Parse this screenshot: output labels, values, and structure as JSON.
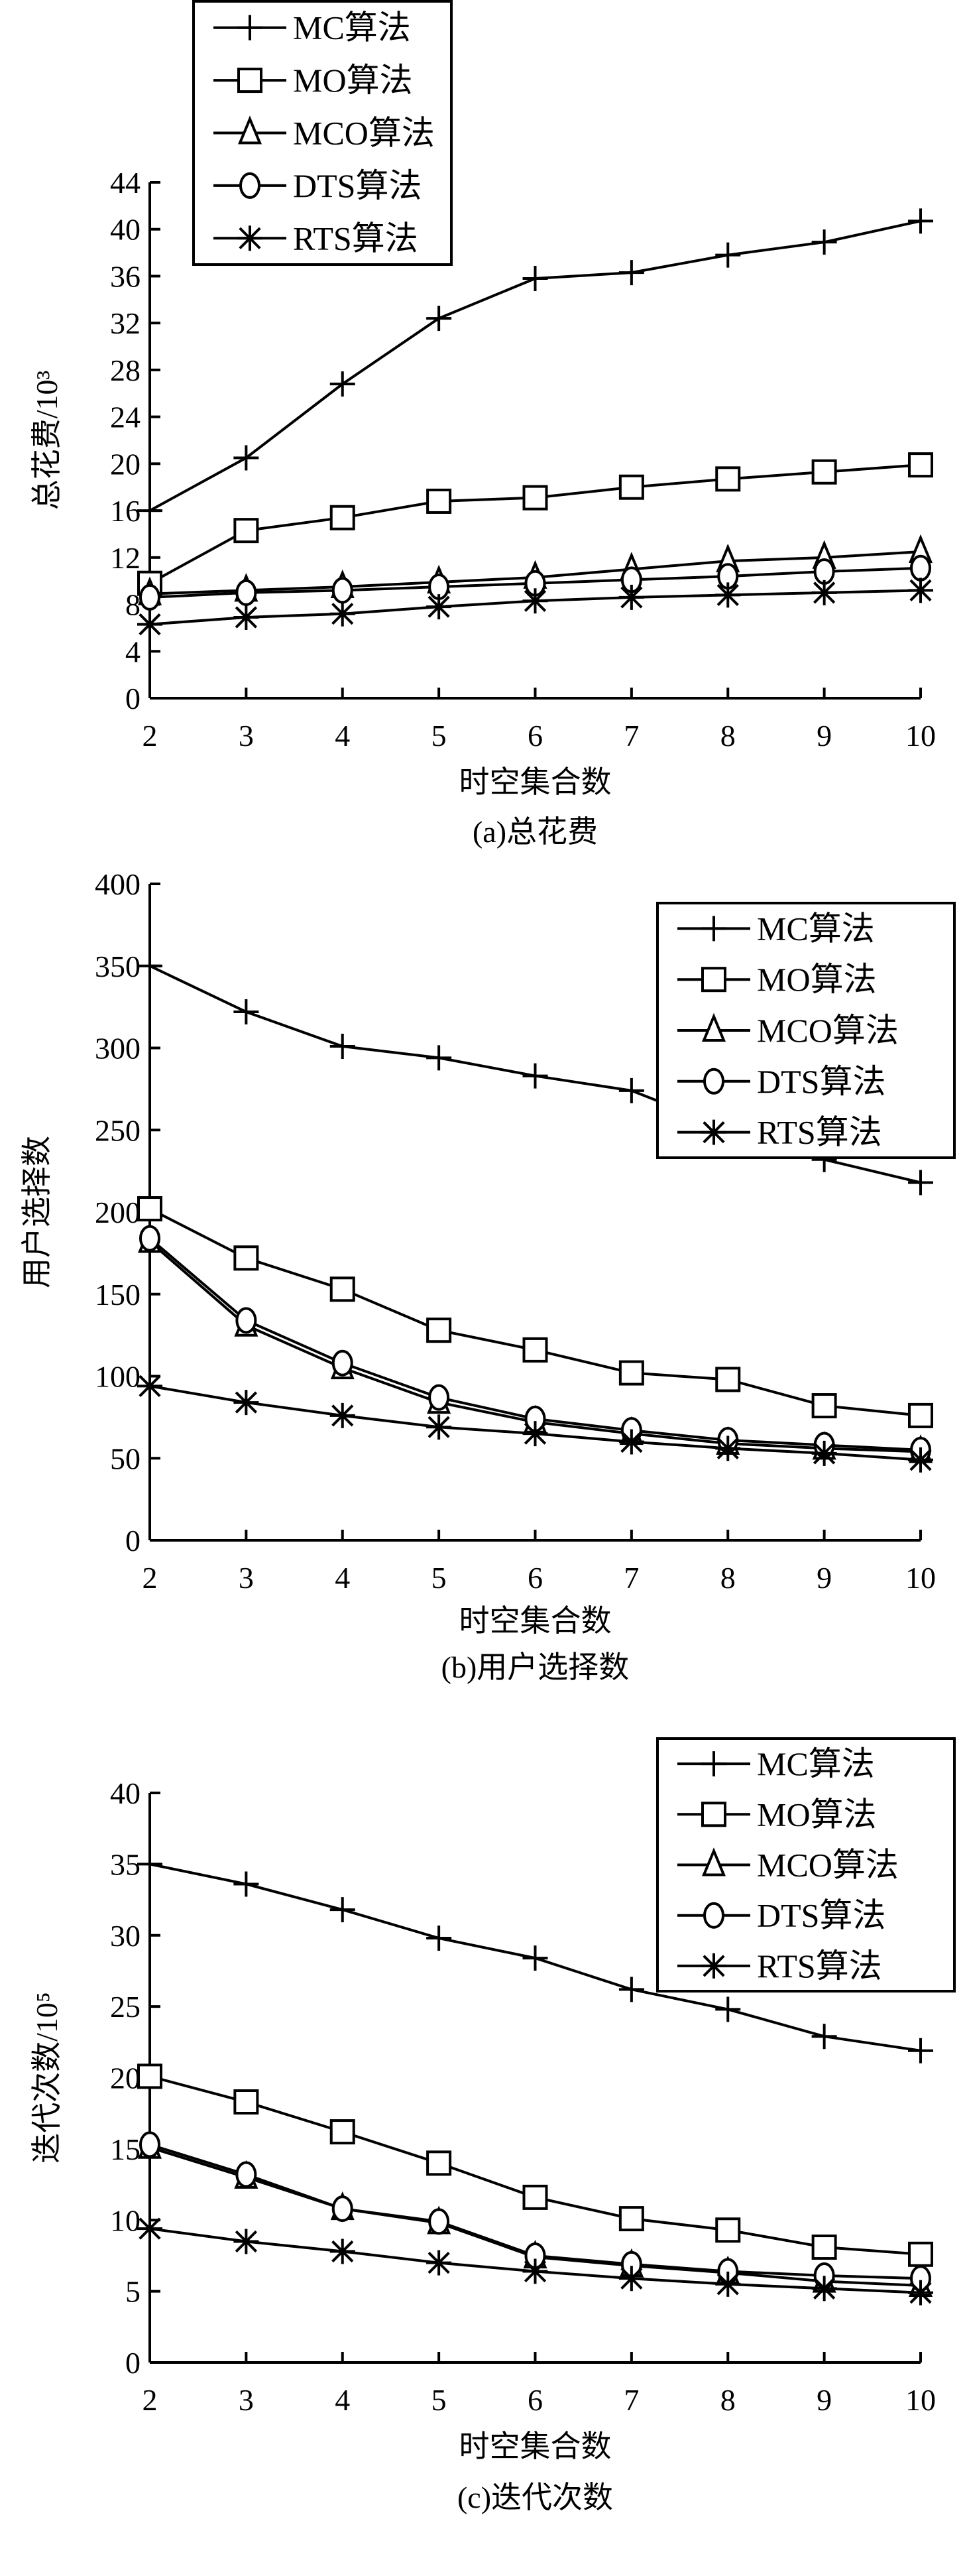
{
  "chart_data": [
    {
      "type": "line",
      "caption": "(a)总花费",
      "xlabel": "时空集合数",
      "ylabel": "总花费/10³",
      "x": [
        2,
        3,
        4,
        5,
        6,
        7,
        8,
        9,
        10
      ],
      "xlim": [
        2,
        10
      ],
      "ylim": [
        0,
        44
      ],
      "yticks": [
        0,
        4,
        8,
        12,
        16,
        20,
        24,
        28,
        32,
        36,
        40,
        44
      ],
      "legend_position": "top-left",
      "grid": false,
      "series": [
        {
          "name": "MC算法",
          "marker": "plus",
          "values": [
            16,
            20.5,
            26.8,
            32.4,
            35.8,
            36.3,
            37.8,
            38.9,
            40.7
          ]
        },
        {
          "name": "MO算法",
          "marker": "square",
          "values": [
            9.8,
            14.3,
            15.4,
            16.8,
            17.1,
            18,
            18.7,
            19.3,
            19.9
          ]
        },
        {
          "name": "MCO算法",
          "marker": "triangle",
          "values": [
            8.9,
            9.2,
            9.5,
            9.9,
            10.3,
            11,
            11.7,
            12,
            12.5
          ]
        },
        {
          "name": "DTS算法",
          "marker": "circle",
          "values": [
            8.6,
            9.0,
            9.2,
            9.5,
            9.8,
            10.1,
            10.4,
            10.8,
            11.1
          ]
        },
        {
          "name": "RTS算法",
          "marker": "asterisk",
          "values": [
            6.3,
            6.9,
            7.2,
            7.8,
            8.3,
            8.6,
            8.8,
            9.0,
            9.2
          ]
        }
      ]
    },
    {
      "type": "line",
      "caption": "(b)用户选择数",
      "xlabel": "时空集合数",
      "ylabel": "用户选择数",
      "x": [
        2,
        3,
        4,
        5,
        6,
        7,
        8,
        9,
        10
      ],
      "xlim": [
        2,
        10
      ],
      "ylim": [
        0,
        400
      ],
      "yticks": [
        0,
        50,
        100,
        150,
        200,
        250,
        300,
        350,
        400
      ],
      "legend_position": "top-right",
      "grid": false,
      "series": [
        {
          "name": "MC算法",
          "marker": "plus",
          "values": [
            350,
            322,
            301,
            294,
            283,
            274,
            251,
            232,
            218
          ]
        },
        {
          "name": "MO算法",
          "marker": "square",
          "values": [
            202,
            172,
            153,
            128,
            116,
            102,
            98,
            82,
            76
          ]
        },
        {
          "name": "MCO算法",
          "marker": "triangle",
          "values": [
            182,
            131,
            105,
            84,
            72,
            65,
            59,
            56,
            54
          ]
        },
        {
          "name": "DTS算法",
          "marker": "circle",
          "values": [
            184,
            134,
            108,
            87,
            74,
            67,
            61,
            58,
            55
          ]
        },
        {
          "name": "RTS算法",
          "marker": "asterisk",
          "values": [
            94,
            84,
            76,
            69,
            65,
            60,
            56,
            53,
            49
          ]
        }
      ]
    },
    {
      "type": "line",
      "caption": "(c)迭代次数",
      "xlabel": "时空集合数",
      "ylabel": "迭代次数/10⁵",
      "x": [
        2,
        3,
        4,
        5,
        6,
        7,
        8,
        9,
        10
      ],
      "xlim": [
        2,
        10
      ],
      "ylim": [
        0,
        40
      ],
      "yticks": [
        0,
        5,
        10,
        15,
        20,
        25,
        30,
        35,
        40
      ],
      "legend_position": "top-right",
      "grid": false,
      "series": [
        {
          "name": "MC算法",
          "marker": "plus",
          "values": [
            35,
            33.6,
            31.8,
            29.8,
            28.4,
            26.2,
            24.8,
            22.9,
            21.9
          ]
        },
        {
          "name": "MO算法",
          "marker": "square",
          "values": [
            20.1,
            18.3,
            16.2,
            14,
            11.6,
            10.1,
            9.3,
            8.1,
            7.6
          ]
        },
        {
          "name": "MCO算法",
          "marker": "triangle",
          "values": [
            15.1,
            13.0,
            10.8,
            9.8,
            7.4,
            6.8,
            6.3,
            5.7,
            5.4
          ]
        },
        {
          "name": "DTS算法",
          "marker": "circle",
          "values": [
            15.3,
            13.2,
            10.8,
            9.9,
            7.5,
            6.9,
            6.4,
            6.1,
            5.9
          ]
        },
        {
          "name": "RTS算法",
          "marker": "asterisk",
          "values": [
            9.4,
            8.5,
            7.8,
            7.0,
            6.4,
            5.9,
            5.5,
            5.2,
            4.9
          ]
        }
      ]
    }
  ]
}
